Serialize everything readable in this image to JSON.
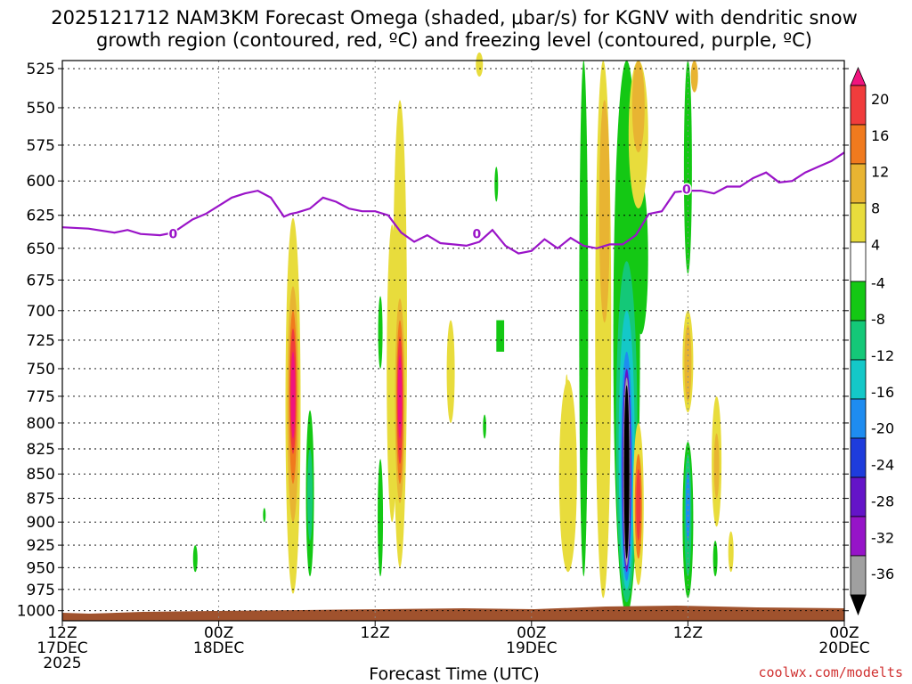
{
  "chart_data": {
    "type": "heatmap",
    "title_line1": "2025121712 NAM3KM Forecast Omega (shaded, μbar/s) for KGNV with dendritic snow",
    "title_line2": "growth region (contoured, red, ºC) and freezing level (contoured, purple, ºC)",
    "xlabel": "Forecast Time (UTC)",
    "credit": "coolwx.com/modelts",
    "y_axis": {
      "ticks": [
        525,
        550,
        575,
        600,
        625,
        650,
        675,
        700,
        725,
        750,
        775,
        800,
        825,
        850,
        875,
        900,
        925,
        950,
        975,
        1000
      ],
      "range_hpa": [
        520,
        1012
      ],
      "scale": "log"
    },
    "x_axis": {
      "range_hours": [
        0,
        60
      ],
      "ticks": [
        {
          "hour": 0,
          "labels": [
            "12Z",
            "17DEC",
            "2025"
          ]
        },
        {
          "hour": 12,
          "labels": [
            "00Z",
            "18DEC"
          ]
        },
        {
          "hour": 24,
          "labels": [
            "12Z"
          ]
        },
        {
          "hour": 36,
          "labels": [
            "00Z",
            "19DEC"
          ]
        },
        {
          "hour": 48,
          "labels": [
            "12Z"
          ]
        },
        {
          "hour": 60,
          "labels": [
            "00Z",
            "20DEC"
          ]
        }
      ]
    },
    "colorbar": {
      "labels": [
        "20",
        "16",
        "12",
        "8",
        "4",
        "-4",
        "-8",
        "-12",
        "-16",
        "-20",
        "-24",
        "-28",
        "-32",
        "-36"
      ],
      "colors": [
        "#f0147e",
        "#f03c3c",
        "#f07a1e",
        "#e8b432",
        "#e8dc3c",
        "#ffffff",
        "#14c814",
        "#14c878",
        "#14c8c8",
        "#1e8cf0",
        "#1e3cdc",
        "#6414c8",
        "#9614c8",
        "#a0a0a0",
        "#000000"
      ]
    },
    "freezing_level": {
      "contour_label": "0",
      "hours": [
        0,
        2,
        4,
        5,
        6,
        7.5,
        8.5,
        10,
        11,
        12,
        13,
        14,
        15,
        16,
        17,
        17.5,
        18,
        19,
        20,
        21,
        22,
        23,
        24,
        25,
        26,
        27,
        28,
        29,
        30,
        31,
        32,
        33,
        34,
        35,
        36,
        37,
        38,
        39,
        40,
        41,
        42,
        43,
        44,
        45,
        46,
        47,
        48,
        49,
        50,
        51,
        52,
        53,
        54,
        55,
        56,
        57,
        58,
        59,
        60
      ],
      "pressure": [
        634,
        635,
        638,
        636,
        639,
        640,
        638,
        628,
        624,
        618,
        612,
        609,
        607,
        612,
        626,
        624,
        623,
        620,
        612,
        615,
        620,
        622,
        622,
        625,
        638,
        645,
        640,
        646,
        647,
        648,
        645,
        636,
        648,
        654,
        652,
        643,
        650,
        642,
        648,
        650,
        647,
        647,
        640,
        624,
        622,
        608,
        607,
        607,
        609,
        604,
        604,
        598,
        594,
        601,
        600,
        594,
        590,
        586,
        580
      ]
    },
    "omega_features": [
      {
        "hour": 17.7,
        "p_top": 627,
        "p_bot": 980,
        "peak": 20,
        "sign": "positive"
      },
      {
        "hour": 25.9,
        "p_top": 545,
        "p_bot": 950,
        "peak": 20,
        "sign": "positive"
      },
      {
        "hour": 43.4,
        "p_top": 520,
        "p_bot": 990,
        "peak": -36,
        "sign": "negative"
      },
      {
        "hour": 44.0,
        "p_top": 800,
        "p_bot": 970,
        "peak": 16,
        "sign": "positive"
      },
      {
        "hour": 48.0,
        "p_top": 712,
        "p_bot": 780,
        "peak": 12,
        "sign": "positive"
      },
      {
        "hour": 48.0,
        "p_top": 820,
        "p_bot": 980,
        "peak": -20,
        "sign": "negative"
      }
    ]
  }
}
